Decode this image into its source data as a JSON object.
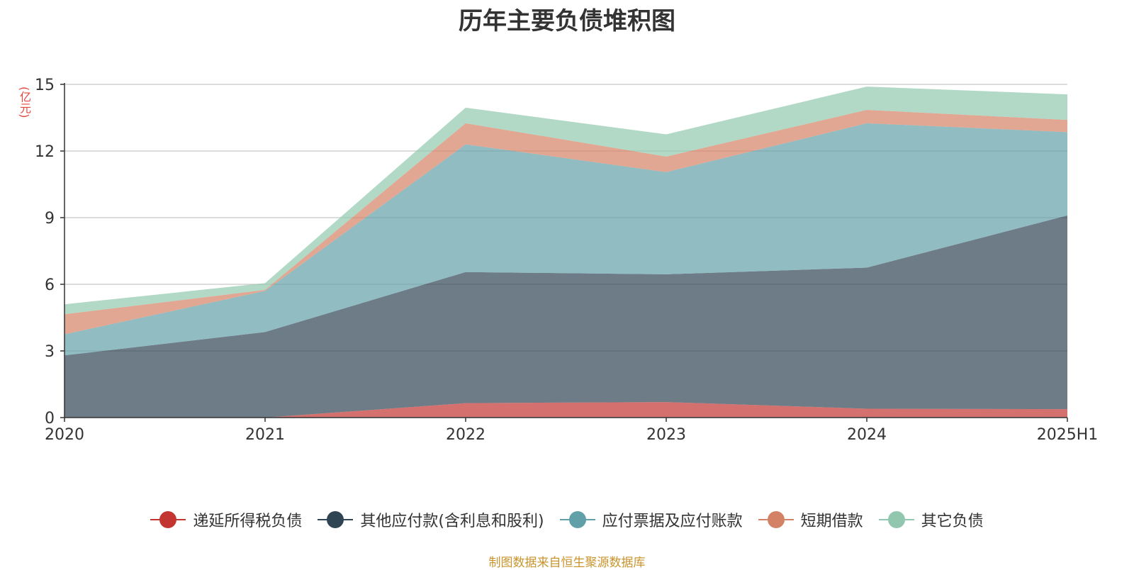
{
  "chart_data": {
    "type": "area",
    "stacked": true,
    "title": "历年主要负债堆积图",
    "ylabel": "(亿元)",
    "xlabel": "",
    "categories": [
      "2020",
      "2021",
      "2022",
      "2023",
      "2024",
      "2025H1"
    ],
    "ylim": [
      0,
      15
    ],
    "yticks": [
      0,
      3,
      6,
      9,
      12,
      15
    ],
    "grid": true,
    "legend_position": "bottom",
    "series": [
      {
        "name": "递延所得税负债",
        "color": "#c23531",
        "values": [
          0.0,
          0.0,
          0.65,
          0.7,
          0.4,
          0.38
        ]
      },
      {
        "name": "其他应付款(含利息和股利)",
        "color": "#2f4554",
        "values": [
          2.8,
          3.85,
          5.9,
          5.75,
          6.35,
          8.72
        ]
      },
      {
        "name": "应付票据及应付账款",
        "color": "#61a0a8",
        "values": [
          0.95,
          1.85,
          5.75,
          4.6,
          6.5,
          3.75
        ]
      },
      {
        "name": "短期借款",
        "color": "#d48265",
        "values": [
          0.9,
          0.05,
          0.95,
          0.7,
          0.6,
          0.55
        ]
      },
      {
        "name": "其它负债",
        "color": "#91c7ae",
        "values": [
          0.45,
          0.3,
          0.7,
          1.0,
          1.05,
          1.15
        ]
      }
    ]
  },
  "footer": {
    "source": "制图数据来自恒生聚源数据库"
  }
}
